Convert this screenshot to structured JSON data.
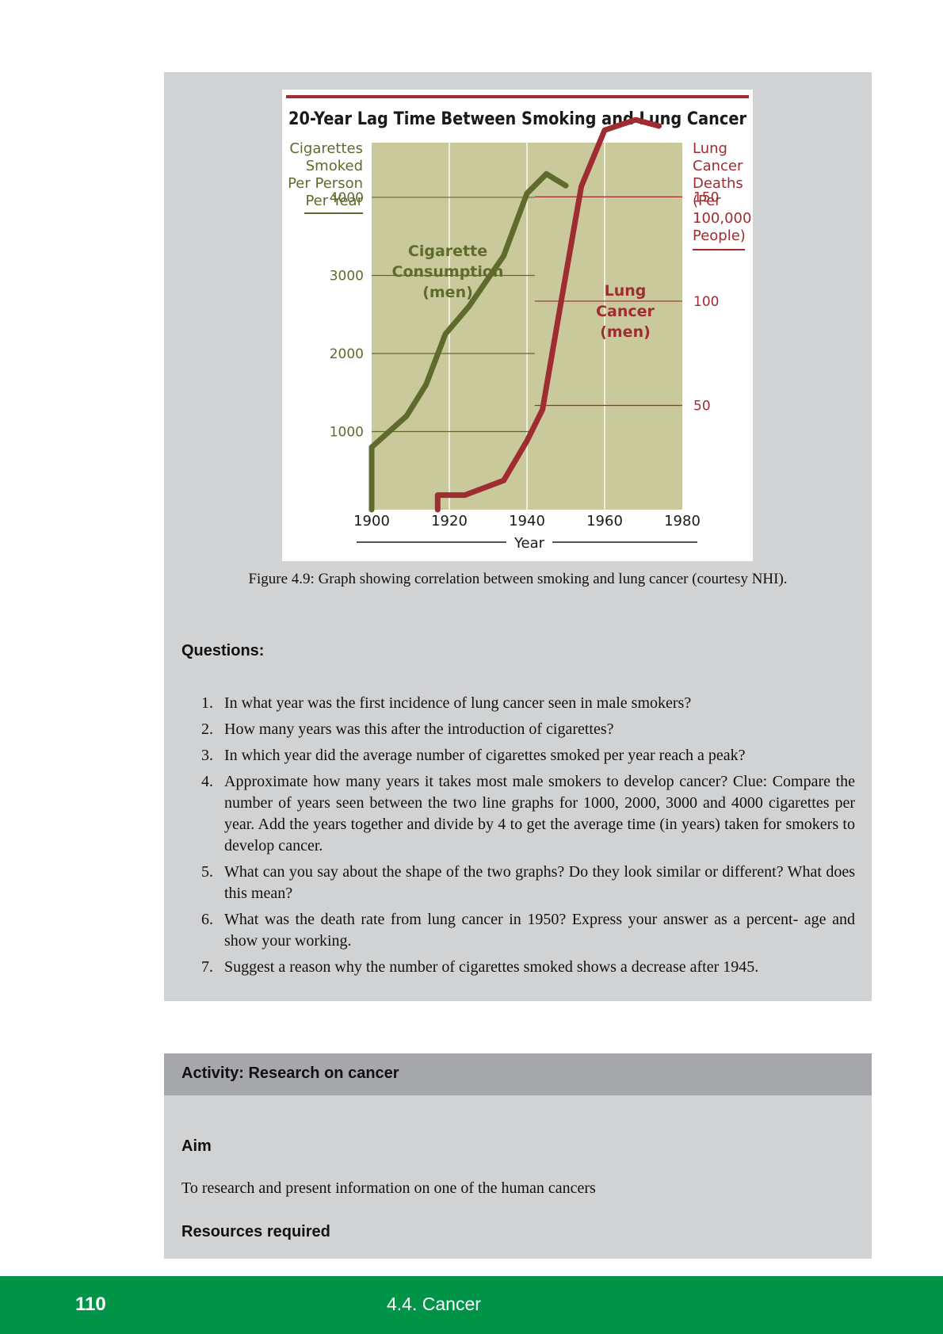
{
  "chart_data": {
    "type": "line",
    "title": "20-Year Lag Time Between Smoking and Lung Cancer",
    "xlabel": "Year",
    "ylabel_left": "Cigarettes Smoked Per Person Per Year",
    "ylabel_right": "Lung Cancer Deaths (Per 100,000 People)",
    "xlim": [
      1900,
      1980
    ],
    "ylim_left": [
      0,
      4700
    ],
    "ylim_right": [
      0,
      176
    ],
    "x_ticks": [
      "1900",
      "1920",
      "1940",
      "1960",
      "1980"
    ],
    "y_ticks_left": [
      "1000",
      "2000",
      "3000",
      "4000"
    ],
    "y_ticks_right": [
      "50",
      "100",
      "150"
    ],
    "series": [
      {
        "name": "Cigarette Consumption (men)",
        "label_lines": [
          "Cigarette",
          "Consumption",
          "(men)"
        ],
        "axis": "left",
        "color": "#5f6b2c",
        "points": [
          [
            1900,
            0
          ],
          [
            1900,
            800
          ],
          [
            1909,
            1200
          ],
          [
            1914,
            1600
          ],
          [
            1919,
            2250
          ],
          [
            1925,
            2600
          ],
          [
            1934,
            3250
          ],
          [
            1940,
            4050
          ],
          [
            1945,
            4300
          ],
          [
            1950,
            4150
          ]
        ]
      },
      {
        "name": "Lung Cancer (men)",
        "label_lines": [
          "Lung",
          "Cancer",
          "(men)"
        ],
        "axis": "right",
        "color": "#9e2c30",
        "points": [
          [
            1917,
            0
          ],
          [
            1917,
            7
          ],
          [
            1924,
            7
          ],
          [
            1934,
            14
          ],
          [
            1940,
            33
          ],
          [
            1944,
            48
          ],
          [
            1949,
            102
          ],
          [
            1954,
            155
          ],
          [
            1960,
            182
          ],
          [
            1968,
            187
          ],
          [
            1974,
            184
          ]
        ]
      }
    ],
    "grid": true,
    "background": "#c9c99b"
  },
  "caption": "Figure 4.9: Graph showing correlation between smoking and lung cancer (courtesy NHI).",
  "questions": {
    "heading": "Questions:",
    "items": [
      {
        "num": "1.",
        "text": "In what year was the first incidence of lung cancer seen in male smokers?"
      },
      {
        "num": "2.",
        "text": "How many years was this after the introduction of cigarettes?"
      },
      {
        "num": "3.",
        "text": "In which year did the average number of cigarettes smoked per year reach a peak?"
      },
      {
        "num": "4.",
        "text": "Approximate how many years it takes most male smokers to develop cancer? Clue: Compare the number of years seen between the two line graphs for 1000, 2000, 3000 and 4000 cigarettes per year. Add the years together and divide by 4 to get the average time (in years) taken for smokers to develop cancer."
      },
      {
        "num": "5.",
        "text": "What can you say about the shape of the two graphs? Do they look similar or different? What does this mean?"
      },
      {
        "num": "6.",
        "text": "What was the death rate from lung cancer in 1950? Express your answer as a percent- age and show your working."
      },
      {
        "num": "7.",
        "text": "Suggest a reason why the number of cigarettes smoked shows a decrease after 1945."
      }
    ]
  },
  "activity": {
    "title": "Activity: Research on cancer",
    "aim_heading": "Aim",
    "aim_text": "To research and present information on one of the human cancers",
    "resources_heading": "Resources required"
  },
  "footer": {
    "page_number": "110",
    "section": "4.4.   Cancer",
    "color": "#009448"
  }
}
